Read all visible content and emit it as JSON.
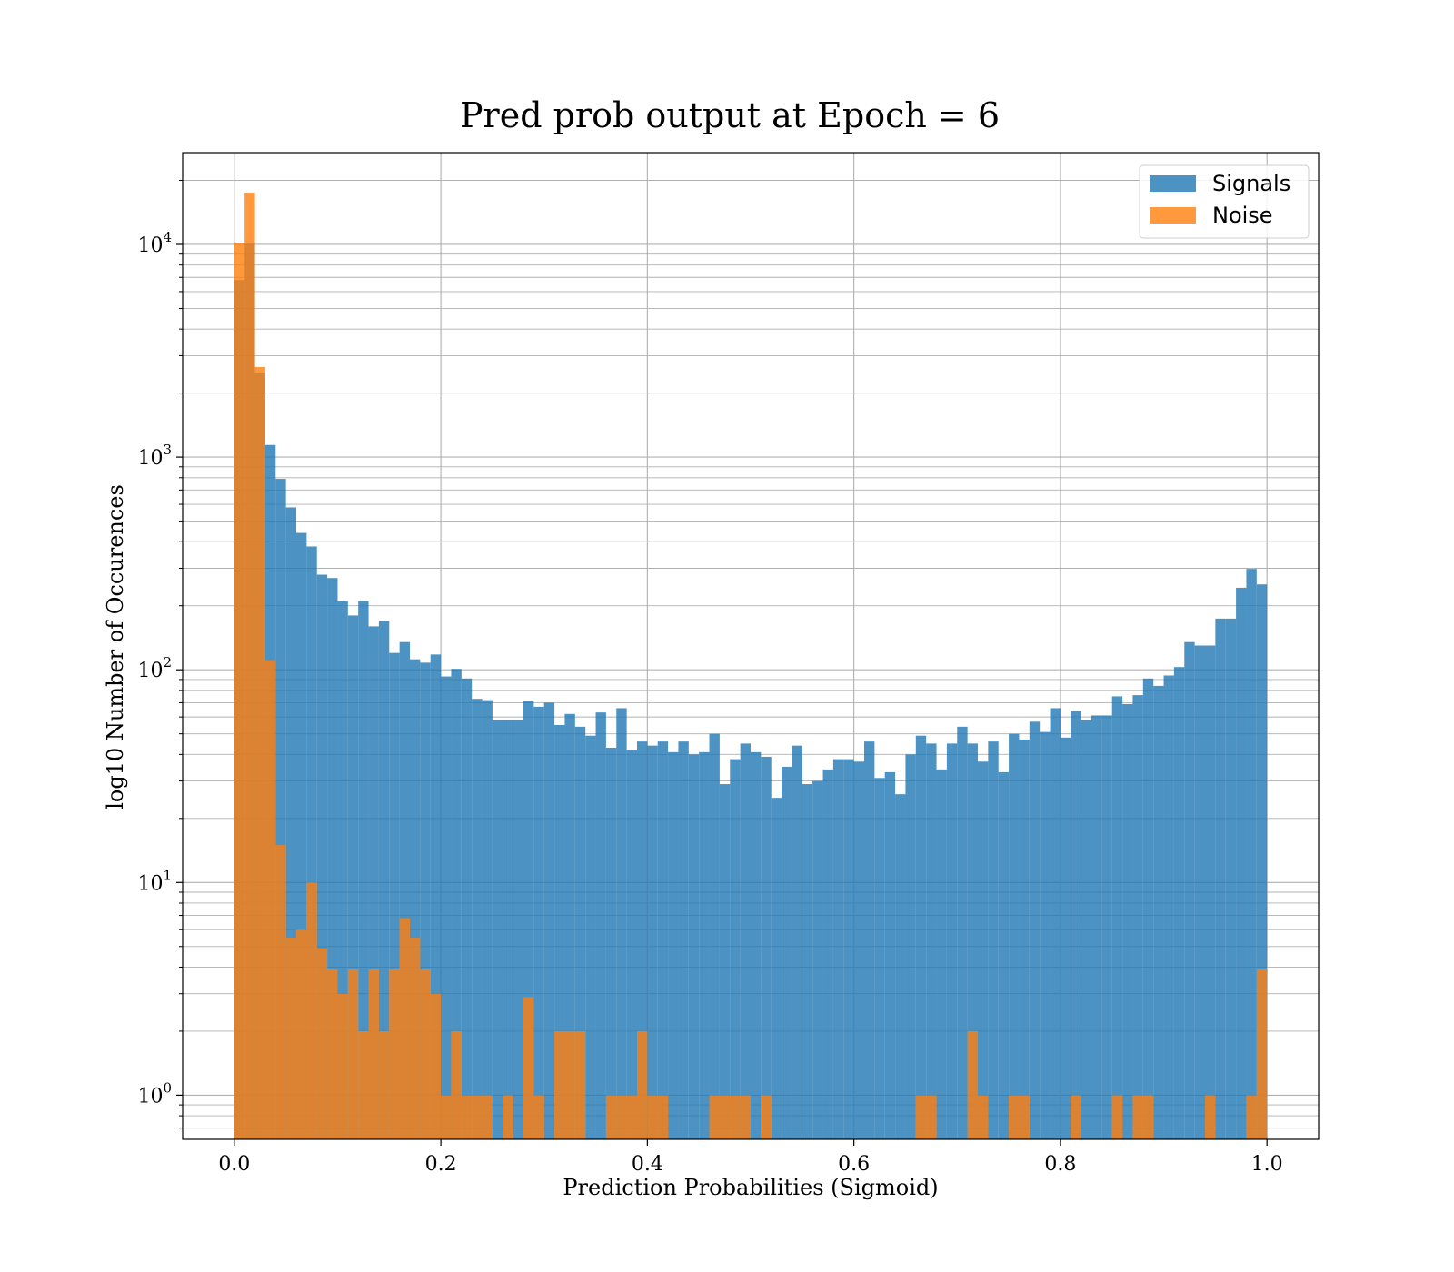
{
  "chart_data": {
    "type": "bar",
    "title": "Pred prob output at Epoch = 6",
    "xlabel": "Prediction Probabilities (Sigmoid)",
    "ylabel": "log10 Number of Occurences",
    "xlim": [
      -0.05,
      1.05
    ],
    "ylim": [
      0.62,
      27000
    ],
    "yscale": "log",
    "grid": true,
    "legend_position": "top-right",
    "bin_start": 0.0,
    "bin_width": 0.01,
    "x_ticks": [
      "0.0",
      "0.2",
      "0.4",
      "0.6",
      "0.8",
      "1.0"
    ],
    "y_ticks": [
      {
        "base": "10",
        "exp": "0"
      },
      {
        "base": "10",
        "exp": "1"
      },
      {
        "base": "10",
        "exp": "2"
      },
      {
        "base": "10",
        "exp": "3"
      },
      {
        "base": "10",
        "exp": "4"
      }
    ],
    "series": [
      {
        "name": "Signals",
        "color": "#1f77b4",
        "values": [
          6800,
          10200,
          2500,
          1140,
          790,
          580,
          440,
          380,
          280,
          270,
          210,
          180,
          210,
          160,
          170,
          120,
          135,
          112,
          108,
          118,
          93,
          101,
          91,
          73,
          72,
          58,
          58,
          58,
          71,
          67,
          70,
          55,
          62,
          54,
          49,
          63,
          43,
          66,
          42,
          46,
          44,
          46,
          41,
          46,
          40,
          41,
          50,
          29,
          38,
          45,
          41,
          39,
          25,
          35,
          44,
          29,
          30,
          34,
          38,
          38,
          37,
          46,
          31,
          33,
          26,
          40,
          49,
          45,
          34,
          45,
          54,
          45,
          37,
          46,
          33,
          50,
          47,
          57,
          51,
          66,
          48,
          64,
          58,
          61,
          61,
          75,
          69,
          76,
          91,
          84,
          94,
          103,
          135,
          130,
          130,
          174,
          174,
          243,
          298,
          252
        ]
      },
      {
        "name": "Noise",
        "color": "#ff7f0e",
        "values": [
          10200,
          17500,
          2650,
          111,
          15,
          5.5,
          6,
          10,
          4.9,
          3.9,
          3,
          3.9,
          2,
          3.9,
          2,
          3.9,
          6.8,
          5.5,
          3.9,
          3,
          1,
          2,
          1,
          1,
          1,
          0,
          1,
          0,
          2.9,
          1,
          0,
          2,
          2,
          2,
          0,
          0,
          1,
          1,
          1,
          2,
          1,
          1,
          0,
          0,
          0,
          0,
          1,
          1,
          1,
          1,
          0,
          1,
          0,
          0,
          0,
          0,
          0,
          0,
          0,
          0,
          0,
          0,
          0,
          0,
          0,
          0,
          1,
          1,
          0,
          0,
          0,
          2,
          1,
          0,
          0,
          1,
          1,
          0,
          0,
          0,
          0,
          1,
          0,
          0,
          0,
          1,
          0,
          1,
          1,
          0,
          0,
          0,
          0,
          0,
          1,
          0,
          0,
          0,
          1,
          3.9
        ]
      }
    ]
  }
}
